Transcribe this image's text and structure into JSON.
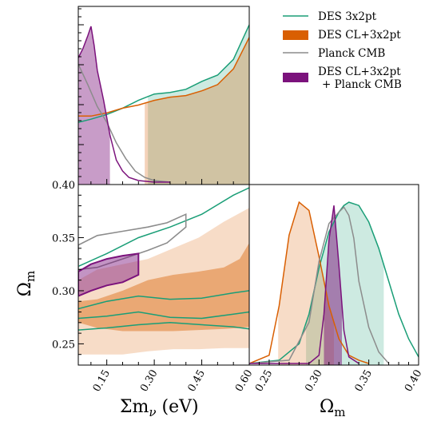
{
  "chart_data": [
    {
      "type": "line",
      "panel": "top-left",
      "description_kind": "1D marginal posterior",
      "xlim": [
        0.06,
        0.6
      ],
      "series": [
        {
          "name": "DES 3x2pt",
          "color": "#1a9e77",
          "x": [
            0.06,
            0.1,
            0.15,
            0.2,
            0.25,
            0.3,
            0.35,
            0.4,
            0.45,
            0.5,
            0.55,
            0.6
          ],
          "values": [
            0.38,
            0.4,
            0.43,
            0.47,
            0.52,
            0.56,
            0.57,
            0.59,
            0.64,
            0.68,
            0.78,
            1.0
          ]
        },
        {
          "name": "DES CL+3x2pt",
          "color": "#d95f02",
          "x": [
            0.06,
            0.1,
            0.15,
            0.2,
            0.25,
            0.3,
            0.35,
            0.4,
            0.45,
            0.5,
            0.55,
            0.6
          ],
          "values": [
            0.42,
            0.42,
            0.44,
            0.47,
            0.49,
            0.52,
            0.54,
            0.55,
            0.58,
            0.62,
            0.72,
            0.92
          ],
          "shaded_x_min": 0.27
        },
        {
          "name": "Planck CMB",
          "color": "#8c8c8c",
          "x": [
            0.06,
            0.09,
            0.12,
            0.15,
            0.18,
            0.21,
            0.24,
            0.27,
            0.3,
            0.35
          ],
          "values": [
            0.75,
            0.62,
            0.48,
            0.38,
            0.25,
            0.15,
            0.07,
            0.03,
            0.01,
            0.0
          ]
        },
        {
          "name": "DES CL+3x2pt + Planck CMB",
          "color": "#7b127c",
          "x": [
            0.06,
            0.075,
            0.09,
            0.1,
            0.11,
            0.12,
            0.14,
            0.16,
            0.18,
            0.2,
            0.22,
            0.25,
            0.3,
            0.35
          ],
          "values": [
            0.79,
            0.85,
            0.93,
            0.99,
            0.87,
            0.71,
            0.52,
            0.3,
            0.14,
            0.07,
            0.03,
            0.01,
            0.0,
            0.0
          ],
          "shaded_x_max": 0.16
        }
      ]
    },
    {
      "type": "line",
      "panel": "bottom-left",
      "description_kind": "2D posterior contours",
      "xlabel": "Σm_ν (eV)",
      "ylabel": "Ω_m",
      "xlim": [
        0.06,
        0.6
      ],
      "ylim": [
        0.23,
        0.4
      ],
      "xticks": [
        "0.15",
        "0.30",
        "0.45",
        "0.60"
      ],
      "yticks": [
        "0.25",
        "0.30",
        "0.35",
        "0.40"
      ],
      "series": [
        {
          "name": "DES CL+3x2pt 95%",
          "color": "#d95f02",
          "x": [
            0.06,
            0.12,
            0.2,
            0.28,
            0.36,
            0.44,
            0.52,
            0.6
          ],
          "upper": [
            0.31,
            0.32,
            0.325,
            0.33,
            0.34,
            0.35,
            0.365,
            0.378
          ],
          "lower": [
            0.24,
            0.24,
            0.24,
            0.243,
            0.245,
            0.245,
            0.246,
            0.246
          ]
        },
        {
          "name": "DES CL+3x2pt 68%",
          "color": "#d95f02",
          "x": [
            0.06,
            0.12,
            0.2,
            0.28,
            0.36,
            0.44,
            0.52,
            0.57,
            0.6
          ],
          "upper": [
            0.29,
            0.292,
            0.3,
            0.31,
            0.315,
            0.318,
            0.322,
            0.33,
            0.345
          ],
          "lower": [
            0.27,
            0.265,
            0.262,
            0.262,
            0.262,
            0.263,
            0.264,
            0.265,
            0.266
          ]
        },
        {
          "name": "DES 3x2pt contours",
          "color": "#1a9e77",
          "x": [
            0.06,
            0.15,
            0.25,
            0.35,
            0.45,
            0.55,
            0.6
          ],
          "outer_upper": [
            0.323,
            0.335,
            0.35,
            0.36,
            0.372,
            0.39,
            0.397
          ],
          "inner_upper": [
            0.283,
            0.29,
            0.295,
            0.292,
            0.293,
            0.298,
            0.3
          ],
          "inner_lower": [
            0.274,
            0.276,
            0.28,
            0.275,
            0.274,
            0.278,
            0.28
          ],
          "outer_lower": [
            0.263,
            0.265,
            0.268,
            0.27,
            0.268,
            0.266,
            0.264
          ]
        },
        {
          "name": "Planck CMB contours",
          "color": "#8c8c8c",
          "x": [
            0.06,
            0.12,
            0.2,
            0.28,
            0.34,
            0.4
          ],
          "upper": [
            0.343,
            0.352,
            0.356,
            0.36,
            0.364,
            0.372
          ],
          "lower": [
            0.32,
            0.322,
            0.33,
            0.338,
            0.345,
            0.36
          ]
        },
        {
          "name": "DES CL+3x2pt + Planck CMB contours",
          "color": "#7b127c",
          "x": [
            0.06,
            0.1,
            0.15,
            0.2,
            0.25
          ],
          "upper": [
            0.318,
            0.325,
            0.33,
            0.333,
            0.335
          ],
          "lower": [
            0.295,
            0.3,
            0.305,
            0.308,
            0.315
          ]
        }
      ]
    },
    {
      "type": "line",
      "panel": "bottom-right",
      "description_kind": "1D marginal posterior",
      "xlabel": "Ω_m",
      "xlim": [
        0.23,
        0.4
      ],
      "xticks": [
        "0.25",
        "0.30",
        "0.35",
        "0.40"
      ],
      "series": [
        {
          "name": "DES 3x2pt",
          "color": "#1a9e77",
          "x": [
            0.23,
            0.26,
            0.28,
            0.29,
            0.3,
            0.31,
            0.32,
            0.325,
            0.33,
            0.34,
            0.35,
            0.36,
            0.37,
            0.38,
            0.39,
            0.4
          ],
          "values": [
            0.0,
            0.02,
            0.12,
            0.3,
            0.58,
            0.8,
            0.92,
            0.96,
            0.98,
            0.96,
            0.86,
            0.7,
            0.5,
            0.3,
            0.15,
            0.04
          ],
          "shaded_range": [
            0.287,
            0.365
          ]
        },
        {
          "name": "DES CL+3x2pt",
          "color": "#d95f02",
          "x": [
            0.23,
            0.25,
            0.26,
            0.27,
            0.28,
            0.29,
            0.3,
            0.31,
            0.32,
            0.33,
            0.34,
            0.35
          ],
          "values": [
            0.0,
            0.05,
            0.35,
            0.78,
            0.98,
            0.93,
            0.65,
            0.35,
            0.15,
            0.05,
            0.02,
            0.0
          ],
          "shaded_range": [
            0.259,
            0.315
          ]
        },
        {
          "name": "Planck CMB",
          "color": "#8c8c8c",
          "x": [
            0.23,
            0.27,
            0.29,
            0.3,
            0.31,
            0.32,
            0.325,
            0.33,
            0.335,
            0.34,
            0.35,
            0.36,
            0.37
          ],
          "values": [
            0.0,
            0.02,
            0.25,
            0.62,
            0.85,
            0.92,
            0.95,
            0.9,
            0.76,
            0.5,
            0.22,
            0.07,
            0.0
          ]
        },
        {
          "name": "DES CL+3x2pt + Planck CMB",
          "color": "#7b127c",
          "x": [
            0.23,
            0.29,
            0.3,
            0.305,
            0.31,
            0.315,
            0.32,
            0.325,
            0.33,
            0.34
          ],
          "values": [
            0.0,
            0.0,
            0.05,
            0.3,
            0.75,
            0.96,
            0.6,
            0.2,
            0.04,
            0.0
          ],
          "shaded_range": [
            0.305,
            0.323
          ]
        }
      ]
    }
  ],
  "legend": {
    "placement": "top-right",
    "entries": [
      {
        "label": "DES 3x2pt",
        "color": "#1a9e77",
        "style": "line"
      },
      {
        "label": "DES CL+3x2pt",
        "color": "#d95f02",
        "style": "patch"
      },
      {
        "label": "Planck CMB",
        "color": "#8c8c8c",
        "style": "line"
      },
      {
        "label_line1": "DES CL+3x2pt",
        "label_line2": "+ Planck CMB",
        "color": "#7b127c",
        "style": "patch"
      }
    ]
  },
  "axes": {
    "top_left_ytick": "0.40",
    "xlabel_left": "Σm",
    "xlabel_left_sub": "ν",
    "xlabel_left_unit": " (eV)",
    "xlabel_right": "Ω",
    "xlabel_right_sub": "m",
    "ylabel": "Ω",
    "ylabel_sub": "m"
  }
}
